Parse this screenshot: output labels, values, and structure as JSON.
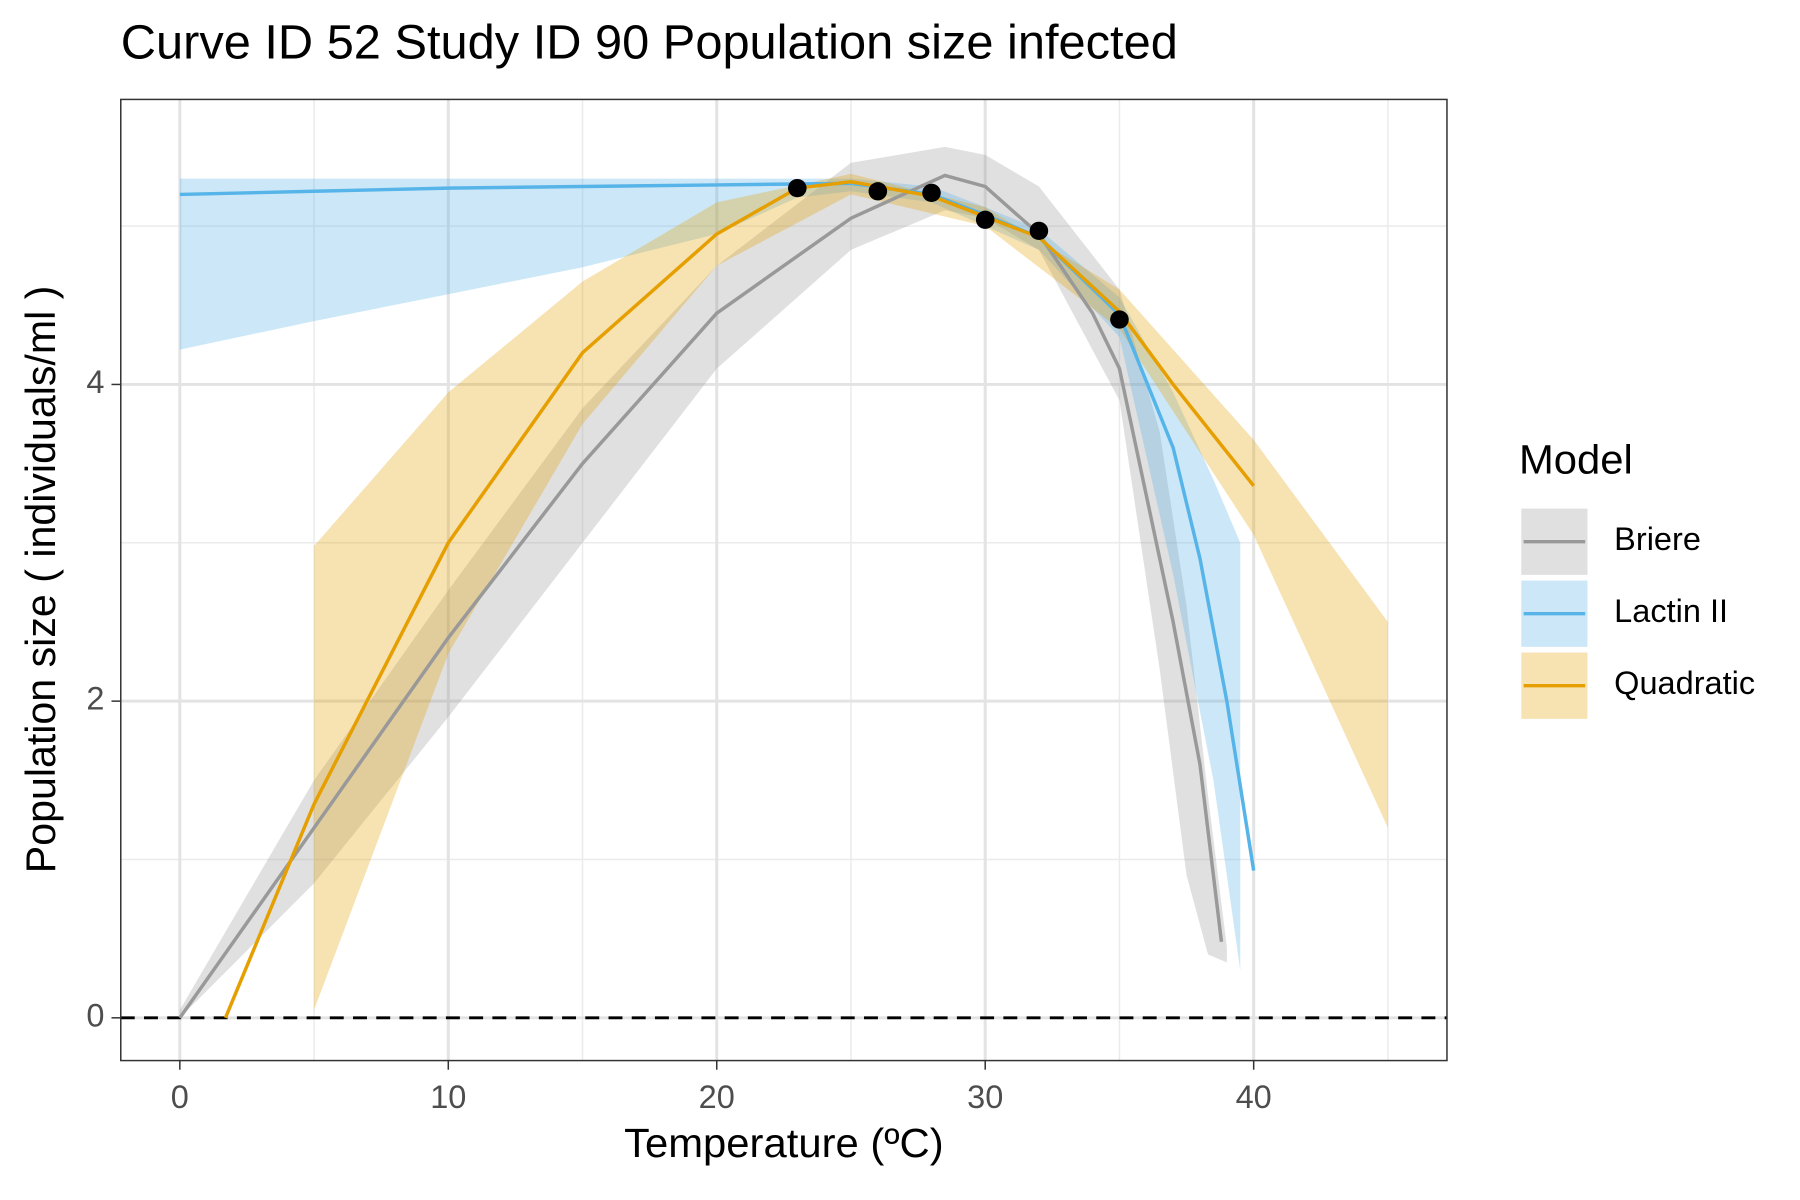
{
  "chart_data": {
    "type": "line",
    "title": "Curve ID 52 Study ID 90 Population size infected",
    "x_label": "Temperature (ºC)",
    "y_label": "Population size ( individuals/ml )",
    "legend_title": "Model",
    "xlim": [
      -2.2,
      47.2
    ],
    "ylim": [
      -0.27,
      5.8
    ],
    "xticks": [
      0,
      10,
      20,
      30,
      40
    ],
    "yticks": [
      0,
      2,
      4
    ],
    "minor_xticks": [
      5,
      15,
      25,
      35,
      45
    ],
    "minor_yticks": [
      1,
      3,
      5
    ],
    "grid": true,
    "hline": 0,
    "series": [
      {
        "name": "Briere",
        "color": "#999999",
        "x": [
          0,
          5,
          10,
          15,
          20,
          25,
          28.5,
          30,
          32,
          34,
          35,
          36,
          37,
          38,
          38.8
        ],
        "values": [
          0,
          1.2,
          2.4,
          3.5,
          4.45,
          5.05,
          5.32,
          5.25,
          4.95,
          4.45,
          4.1,
          3.3,
          2.5,
          1.6,
          0.48
        ],
        "ribbon_x": [
          0,
          5,
          10,
          15,
          20,
          25,
          28.5,
          30,
          32,
          35,
          36.5,
          37.5,
          38.3,
          39
        ],
        "ribbon_lower": [
          0,
          0.85,
          1.9,
          3.0,
          4.1,
          4.85,
          5.1,
          5.05,
          4.85,
          3.9,
          2.2,
          0.9,
          0.4,
          0.35
        ],
        "ribbon_upper": [
          0.05,
          1.5,
          2.7,
          3.85,
          4.75,
          5.4,
          5.5,
          5.45,
          5.25,
          4.6,
          3.7,
          2.6,
          1.4,
          0.45
        ]
      },
      {
        "name": "Lactin II",
        "color": "#56B4E9",
        "x": [
          0,
          5,
          10,
          15,
          20,
          25,
          28,
          30,
          32,
          35,
          37,
          38,
          39,
          40
        ],
        "values": [
          5.2,
          5.22,
          5.24,
          5.25,
          5.26,
          5.27,
          5.2,
          5.07,
          4.93,
          4.44,
          3.6,
          2.9,
          2.0,
          0.93
        ],
        "ribbon_x": [
          0,
          5,
          10,
          15,
          20,
          23,
          25,
          28,
          30,
          32,
          35,
          37,
          38.5,
          39.5
        ],
        "ribbon_lower": [
          4.22,
          4.4,
          4.57,
          4.74,
          4.95,
          5.18,
          5.22,
          5.15,
          5.0,
          4.85,
          4.3,
          2.8,
          1.5,
          0.3
        ],
        "ribbon_upper": [
          5.3,
          5.3,
          5.3,
          5.3,
          5.3,
          5.3,
          5.3,
          5.25,
          5.12,
          4.98,
          4.55,
          3.95,
          3.4,
          3.0
        ]
      },
      {
        "name": "Quadratic",
        "color": "#E69F00",
        "x": [
          1.7,
          5,
          10,
          15,
          20,
          23,
          25,
          28,
          30,
          32,
          35,
          37,
          40
        ],
        "values": [
          0,
          1.35,
          3.0,
          4.2,
          4.95,
          5.24,
          5.28,
          5.19,
          5.06,
          4.93,
          4.46,
          4.0,
          3.36
        ],
        "ribbon_x": [
          5,
          10,
          15,
          20,
          25,
          30,
          35,
          40,
          45
        ],
        "ribbon_lower": [
          0.05,
          2.3,
          3.75,
          4.75,
          5.2,
          5.0,
          4.35,
          3.05,
          1.2
        ],
        "ribbon_upper": [
          2.98,
          3.95,
          4.65,
          5.15,
          5.33,
          5.12,
          4.6,
          3.65,
          2.5
        ]
      }
    ],
    "points": {
      "color": "#000000",
      "x": [
        23,
        26,
        28,
        30,
        32,
        35
      ],
      "values": [
        5.24,
        5.22,
        5.21,
        5.04,
        4.97,
        4.41
      ]
    }
  }
}
